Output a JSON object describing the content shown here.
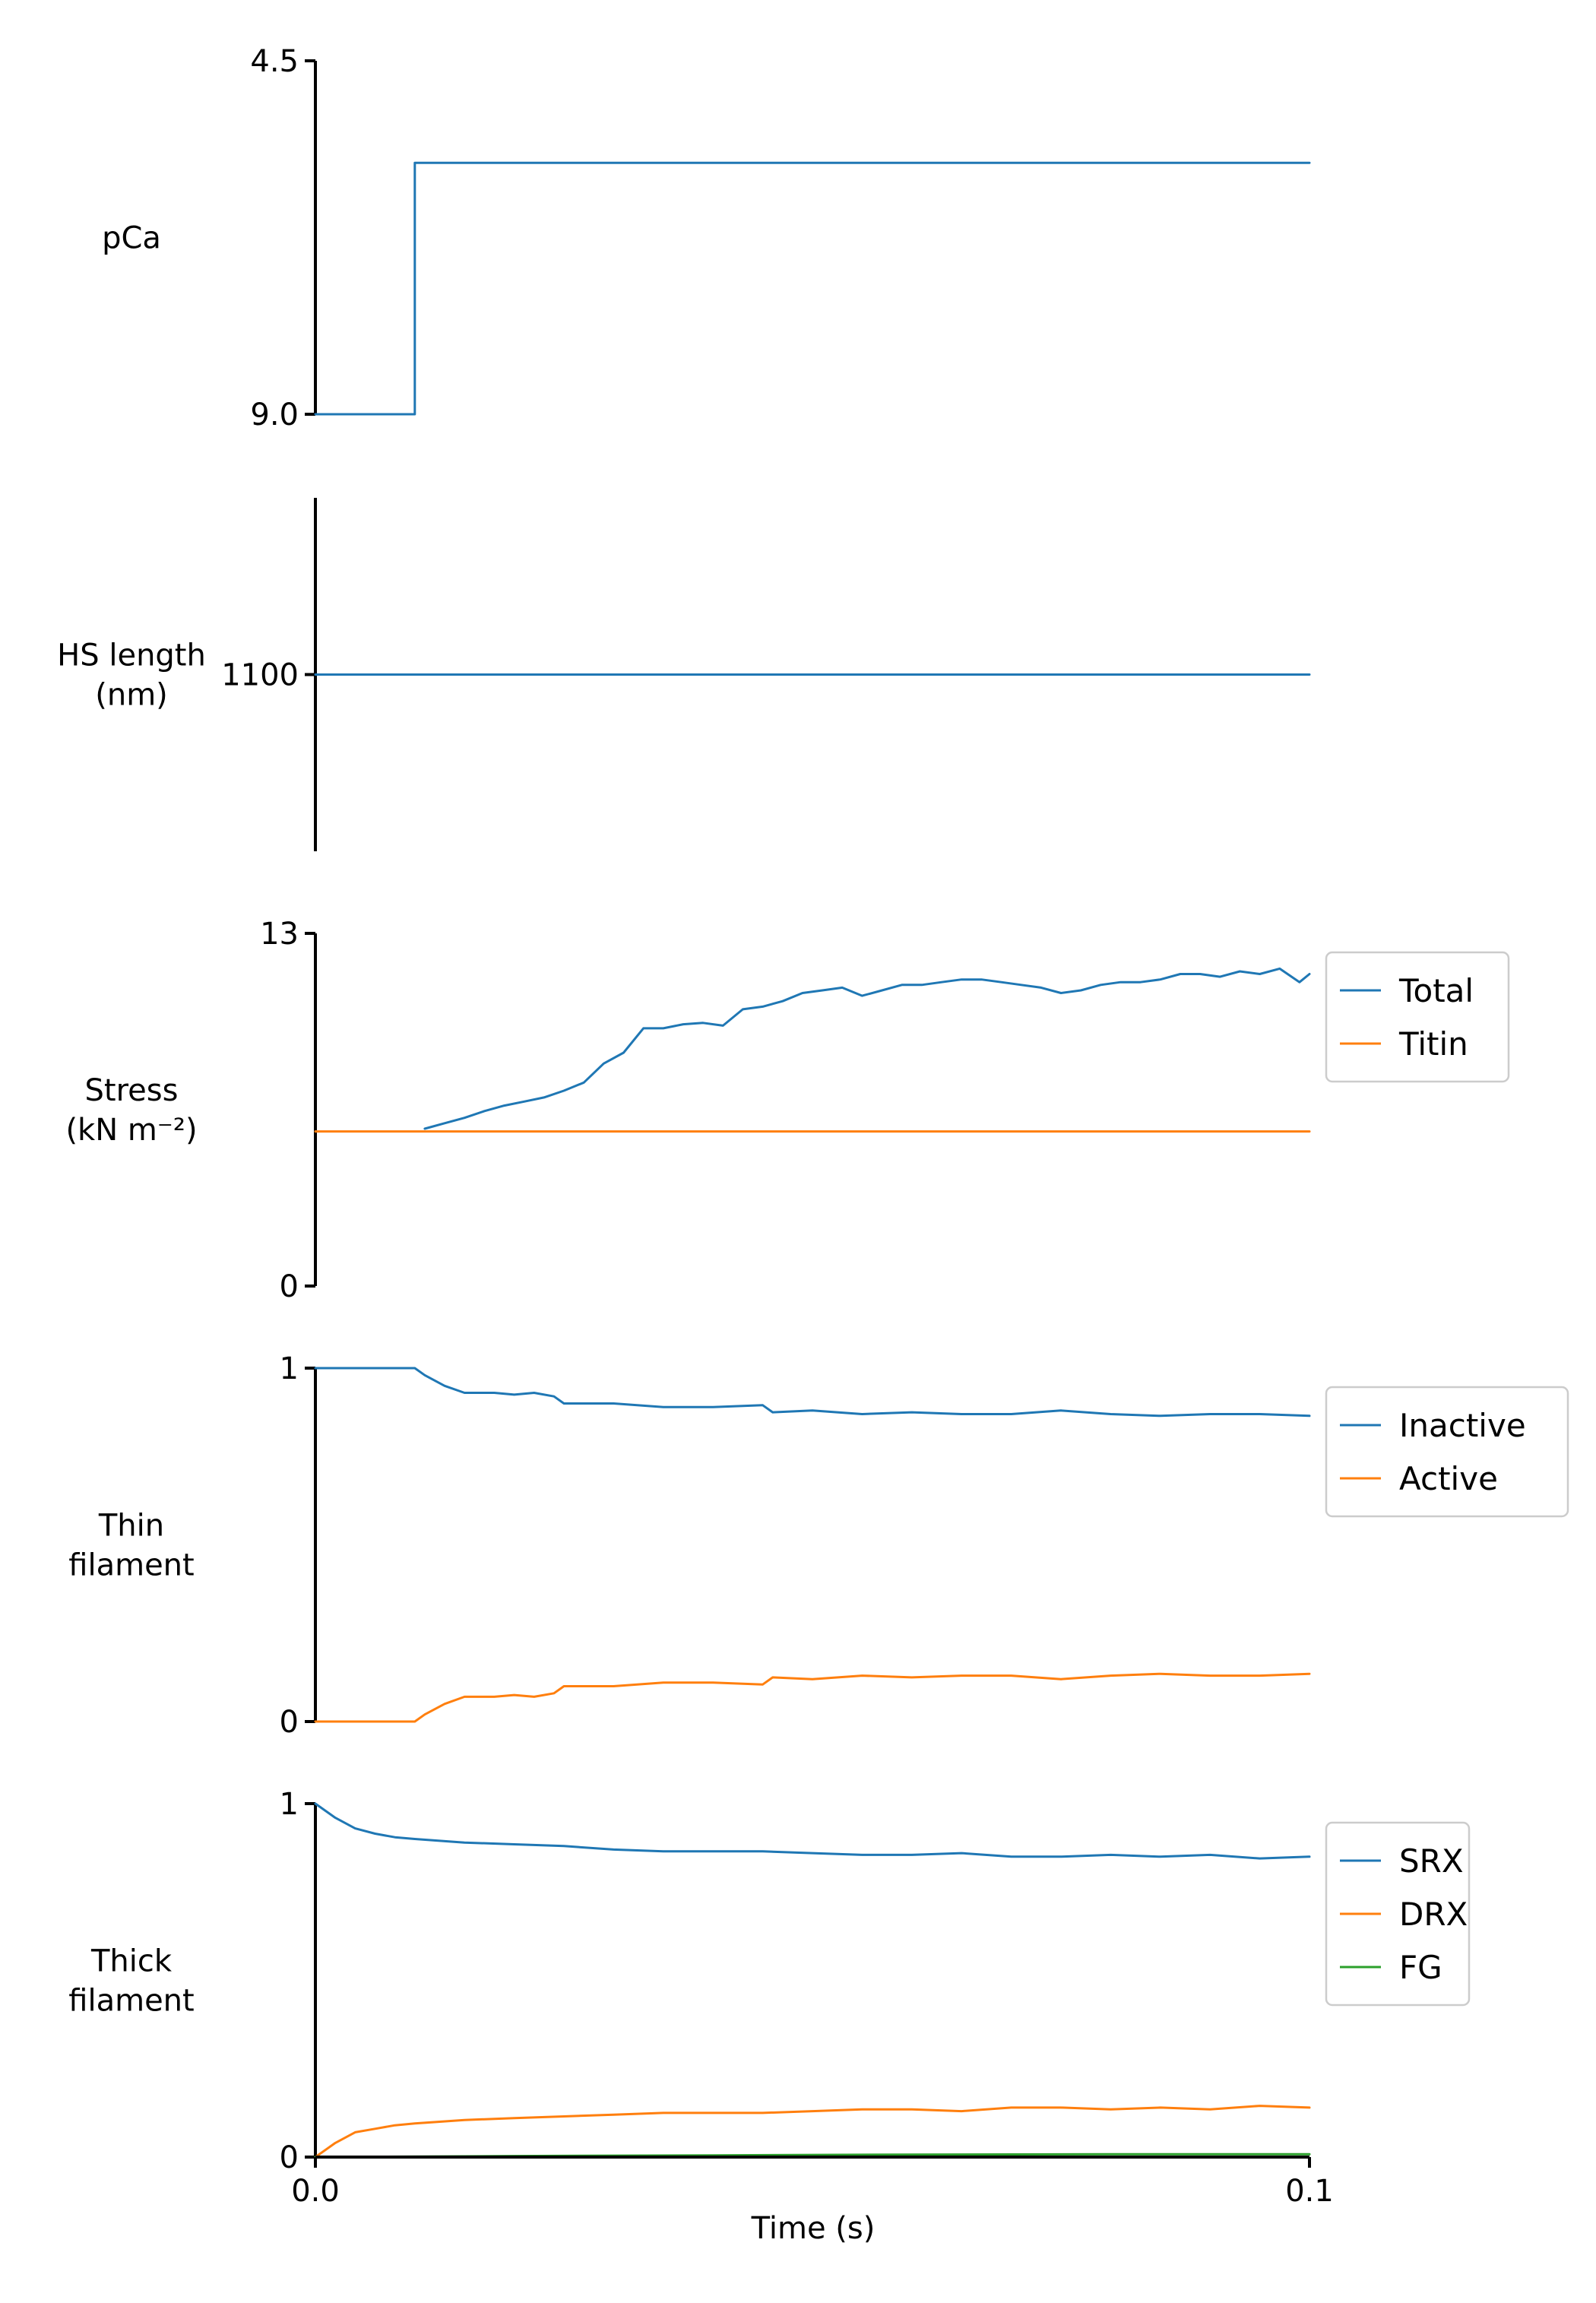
{
  "chart_data": {
    "type": "line",
    "layout": "stacked-panels-shared-x",
    "x_axis": {
      "xlabel": "Time (s)",
      "xlim": [
        0.0,
        0.1
      ],
      "ticks": [
        0.0,
        0.1
      ],
      "tick_labels": [
        "0.0",
        "0.1"
      ]
    },
    "panels": [
      {
        "id": "pca",
        "ylabel_lines": [
          "pCa"
        ],
        "ylim": [
          9.0,
          4.5
        ],
        "ticks": [
          4.5,
          9.0
        ],
        "tick_labels": [
          "4.5",
          "9.0"
        ],
        "legend": false,
        "series": [
          {
            "name": "",
            "color": "#1f77b4",
            "x": [
              0.0,
              0.01,
              0.01,
              0.1
            ],
            "y": [
              9.0,
              9.0,
              5.8,
              5.8
            ]
          }
        ]
      },
      {
        "id": "hs_length",
        "ylabel_lines": [
          "HS length",
          "(nm)"
        ],
        "ylim": [
          1090,
          1110
        ],
        "ticks": [
          1100
        ],
        "tick_labels": [
          "1100"
        ],
        "legend": false,
        "series": [
          {
            "name": "",
            "color": "#1f77b4",
            "x": [
              0.0,
              0.1
            ],
            "y": [
              1100,
              1100
            ]
          }
        ]
      },
      {
        "id": "stress",
        "ylabel_lines": [
          "Stress",
          "(kN m⁻²)"
        ],
        "ylim": [
          0,
          13
        ],
        "ticks": [
          0,
          13
        ],
        "tick_labels": [
          "0",
          "13"
        ],
        "legend": true,
        "legend_placement": "right",
        "series": [
          {
            "name": "Total",
            "color": "#1f77b4",
            "x": [
              0.011,
              0.013,
              0.015,
              0.017,
              0.019,
              0.021,
              0.023,
              0.025,
              0.027,
              0.029,
              0.031,
              0.033,
              0.035,
              0.037,
              0.039,
              0.041,
              0.043,
              0.045,
              0.047,
              0.049,
              0.051,
              0.053,
              0.055,
              0.057,
              0.059,
              0.061,
              0.063,
              0.065,
              0.067,
              0.069,
              0.071,
              0.073,
              0.075,
              0.077,
              0.079,
              0.081,
              0.083,
              0.085,
              0.087,
              0.089,
              0.091,
              0.093,
              0.095,
              0.097,
              0.099,
              0.1
            ],
            "y": [
              5.8,
              6.0,
              6.2,
              6.45,
              6.65,
              6.8,
              6.95,
              7.2,
              7.5,
              8.2,
              8.6,
              9.5,
              9.5,
              9.65,
              9.7,
              9.6,
              10.2,
              10.3,
              10.5,
              10.8,
              10.9,
              11.0,
              10.7,
              10.9,
              11.1,
              11.1,
              11.2,
              11.3,
              11.3,
              11.2,
              11.1,
              11.0,
              10.8,
              10.9,
              11.1,
              11.2,
              11.2,
              11.3,
              11.5,
              11.5,
              11.4,
              11.6,
              11.5,
              11.7,
              11.2,
              11.5
            ]
          },
          {
            "name": "Titin",
            "color": "#ff7f0e",
            "x": [
              0.0,
              0.1
            ],
            "y": [
              5.7,
              5.7
            ]
          }
        ]
      },
      {
        "id": "thin_filament",
        "ylabel_lines": [
          "Thin",
          "filament"
        ],
        "ylim": [
          0,
          1
        ],
        "ticks": [
          0,
          1
        ],
        "tick_labels": [
          "0",
          "1"
        ],
        "legend": true,
        "legend_placement": "right",
        "series": [
          {
            "name": "Inactive",
            "color": "#1f77b4",
            "x": [
              0.0,
              0.01,
              0.011,
              0.013,
              0.015,
              0.018,
              0.02,
              0.022,
              0.024,
              0.025,
              0.027,
              0.03,
              0.035,
              0.04,
              0.045,
              0.046,
              0.05,
              0.055,
              0.06,
              0.065,
              0.07,
              0.075,
              0.08,
              0.085,
              0.09,
              0.095,
              0.1
            ],
            "y": [
              1.0,
              1.0,
              0.98,
              0.95,
              0.93,
              0.93,
              0.925,
              0.93,
              0.92,
              0.9,
              0.9,
              0.9,
              0.89,
              0.89,
              0.895,
              0.875,
              0.88,
              0.87,
              0.875,
              0.87,
              0.87,
              0.88,
              0.87,
              0.865,
              0.87,
              0.87,
              0.865
            ]
          },
          {
            "name": "Active",
            "color": "#ff7f0e",
            "x": [
              0.0,
              0.01,
              0.011,
              0.013,
              0.015,
              0.018,
              0.02,
              0.022,
              0.024,
              0.025,
              0.027,
              0.03,
              0.035,
              0.04,
              0.045,
              0.046,
              0.05,
              0.055,
              0.06,
              0.065,
              0.07,
              0.075,
              0.08,
              0.085,
              0.09,
              0.095,
              0.1
            ],
            "y": [
              0.0,
              0.0,
              0.02,
              0.05,
              0.07,
              0.07,
              0.075,
              0.07,
              0.08,
              0.1,
              0.1,
              0.1,
              0.11,
              0.11,
              0.105,
              0.125,
              0.12,
              0.13,
              0.125,
              0.13,
              0.13,
              0.12,
              0.13,
              0.135,
              0.13,
              0.13,
              0.135
            ]
          }
        ]
      },
      {
        "id": "thick_filament",
        "ylabel_lines": [
          "Thick",
          "filament"
        ],
        "ylim": [
          0,
          1
        ],
        "ticks": [
          0,
          1
        ],
        "tick_labels": [
          "0",
          "1"
        ],
        "legend": true,
        "legend_placement": "right",
        "series": [
          {
            "name": "SRX",
            "color": "#1f77b4",
            "x": [
              0.0,
              0.002,
              0.004,
              0.006,
              0.008,
              0.01,
              0.015,
              0.02,
              0.025,
              0.03,
              0.035,
              0.04,
              0.045,
              0.05,
              0.055,
              0.06,
              0.065,
              0.07,
              0.075,
              0.08,
              0.085,
              0.09,
              0.095,
              0.1
            ],
            "y": [
              1.0,
              0.96,
              0.93,
              0.915,
              0.905,
              0.9,
              0.89,
              0.885,
              0.88,
              0.87,
              0.865,
              0.865,
              0.865,
              0.86,
              0.855,
              0.855,
              0.86,
              0.85,
              0.85,
              0.855,
              0.85,
              0.855,
              0.845,
              0.85
            ]
          },
          {
            "name": "DRX",
            "color": "#ff7f0e",
            "x": [
              0.0,
              0.002,
              0.004,
              0.006,
              0.008,
              0.01,
              0.015,
              0.02,
              0.025,
              0.03,
              0.035,
              0.04,
              0.045,
              0.05,
              0.055,
              0.06,
              0.065,
              0.07,
              0.075,
              0.08,
              0.085,
              0.09,
              0.095,
              0.1
            ],
            "y": [
              0.0,
              0.04,
              0.07,
              0.08,
              0.09,
              0.095,
              0.105,
              0.11,
              0.115,
              0.12,
              0.125,
              0.125,
              0.125,
              0.13,
              0.135,
              0.135,
              0.13,
              0.14,
              0.14,
              0.135,
              0.14,
              0.135,
              0.145,
              0.14
            ]
          },
          {
            "name": "FG",
            "color": "#2ca02c",
            "x": [
              0.0,
              0.02,
              0.04,
              0.06,
              0.08,
              0.1
            ],
            "y": [
              0.0,
              0.003,
              0.005,
              0.007,
              0.008,
              0.008
            ]
          }
        ]
      }
    ]
  }
}
